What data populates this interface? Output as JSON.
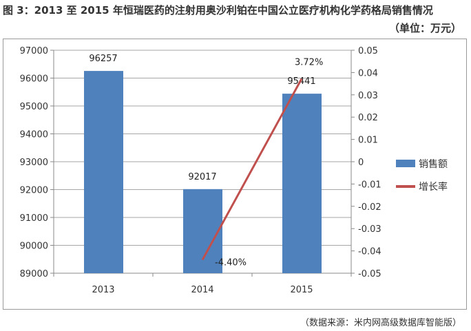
{
  "title": "图 3：2013 至 2015 年恒瑞医药的注射用奥沙利铂在中国公立医疗机构化学药格局销售情况",
  "unit": "（单位：万元）",
  "source": "（数据来源：米内网高级数据库智能版）",
  "chart_data": {
    "type": "bar+line",
    "categories": [
      "2013",
      "2014",
      "2015"
    ],
    "series": [
      {
        "name": "销售额",
        "type": "bar",
        "axis": "left",
        "color": "#4f81bd",
        "values": [
          96257,
          92017,
          95441
        ],
        "labels": [
          "96257",
          "92017",
          "95441"
        ]
      },
      {
        "name": "增长率",
        "type": "line",
        "axis": "right",
        "color": "#c0504d",
        "values": [
          null,
          -0.044,
          0.0372
        ],
        "labels": [
          "",
          "-4.40%",
          "3.72%"
        ]
      }
    ],
    "y_left": {
      "range": [
        89000,
        97000
      ],
      "ticks": [
        "89000",
        "90000",
        "91000",
        "92000",
        "93000",
        "94000",
        "95000",
        "96000",
        "97000"
      ]
    },
    "y_right": {
      "range": [
        -0.05,
        0.05
      ],
      "ticks": [
        "-0.05",
        "-0.04",
        "-0.03",
        "-0.02",
        "-0.01",
        "0",
        "0.01",
        "0.02",
        "0.03",
        "0.04",
        "0.05"
      ]
    },
    "grid": true,
    "legend": "right"
  }
}
